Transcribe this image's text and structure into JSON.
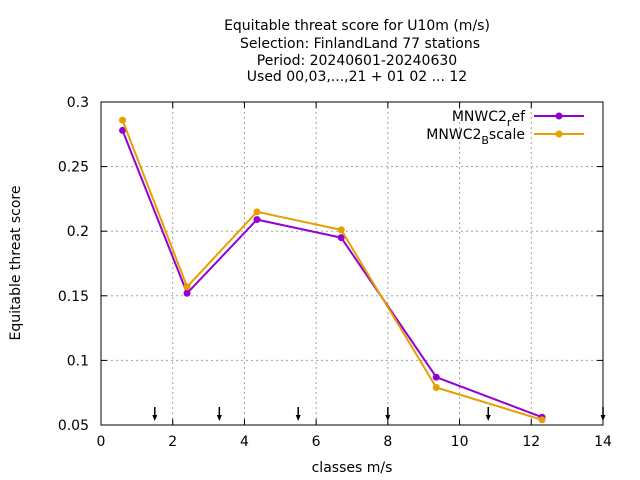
{
  "chart_data": {
    "type": "line",
    "title_lines": [
      "Equitable threat score  for U10m (m/s)",
      "Selection: FinlandLand     77 stations",
      "Period: 20240601-20240630",
      "Used 00,03,...,21 + 01 02 ... 12"
    ],
    "xlabel": "classes m/s",
    "ylabel": "Equitable threat score",
    "xlim": [
      0,
      14
    ],
    "ylim": [
      0.05,
      0.3
    ],
    "xticks": [
      0,
      2,
      4,
      6,
      8,
      10,
      12,
      14
    ],
    "yticks": [
      0.05,
      0.1,
      0.15,
      0.2,
      0.25,
      0.3
    ],
    "ytick_labels": [
      "0.05",
      "0.1",
      "0.15",
      "0.2",
      "0.25",
      "0.3"
    ],
    "grid": true,
    "legend_position": "top-right",
    "class_markers_x": [
      1.5,
      3.3,
      5.5,
      8.0,
      10.8,
      14.0
    ],
    "series": [
      {
        "name": "MNWC2_ref",
        "legend_main": "MNWC2",
        "legend_sub": "r",
        "legend_rest": "ef",
        "color": "#9400d3",
        "x": [
          0.6,
          2.4,
          4.35,
          6.7,
          9.35,
          12.3
        ],
        "y": [
          0.278,
          0.152,
          0.209,
          0.195,
          0.087,
          0.056
        ]
      },
      {
        "name": "MNWC2_Bscale",
        "legend_main": "MNWC2",
        "legend_sub": "B",
        "legend_rest": "scale",
        "color": "#e69f00",
        "x": [
          0.6,
          2.4,
          4.35,
          6.7,
          9.35,
          12.3
        ],
        "y": [
          0.286,
          0.157,
          0.215,
          0.201,
          0.079,
          0.054
        ]
      }
    ]
  }
}
